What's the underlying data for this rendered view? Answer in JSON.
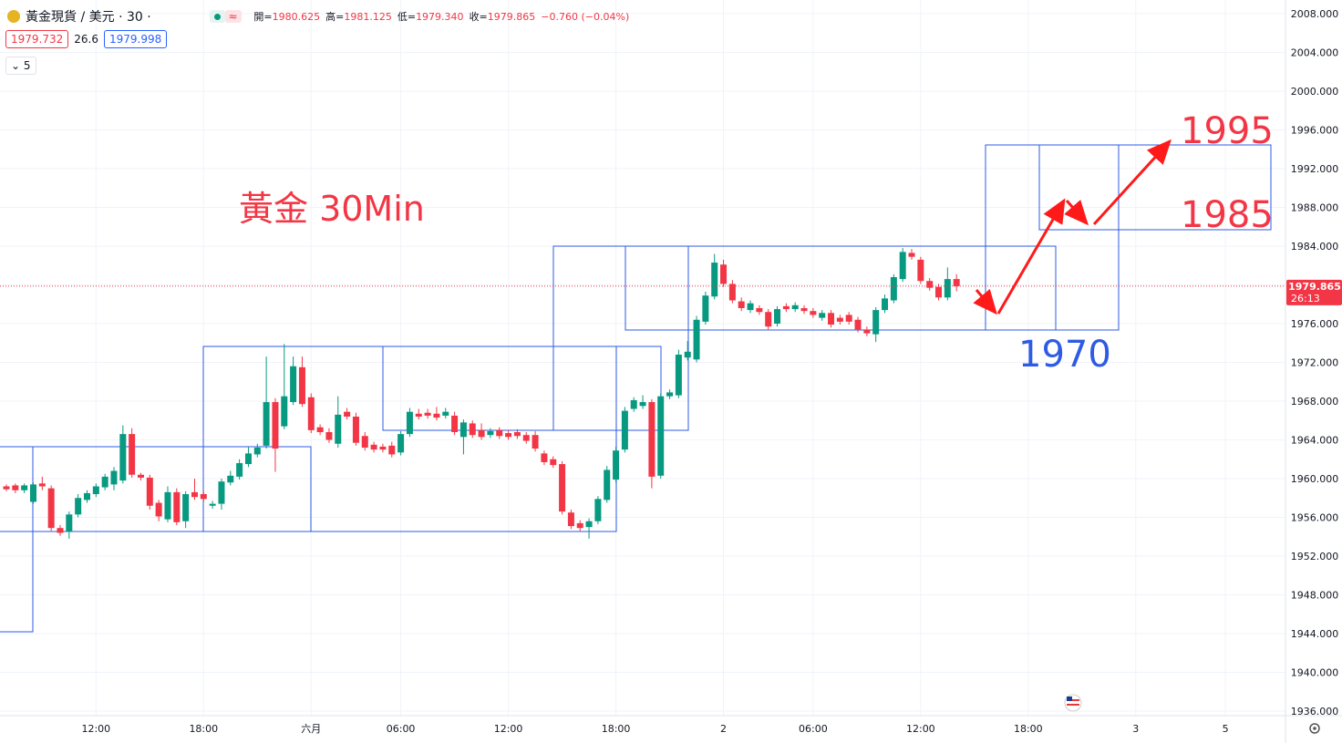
{
  "header": {
    "symbol": "黃金現貨 / 美元 · 30 ·",
    "ohlc": [
      {
        "label": "開=",
        "value": "1980.625"
      },
      {
        "label": "高=",
        "value": "1981.125"
      },
      {
        "label": "低=",
        "value": "1979.340"
      },
      {
        "label": "收=",
        "value": "1979.865"
      }
    ],
    "change": "−0.760 (−0.04%)",
    "bid": "1979.732",
    "spread": "26.6",
    "ask": "1979.998",
    "indicator_count": "5"
  },
  "chart_data": {
    "type": "candlestick",
    "up_color": "#089981",
    "down_color": "#f23645",
    "grid": true,
    "xlim": [
      -0.712,
      142.7
    ],
    "xticks": [
      {
        "value": 10,
        "label": "12:00"
      },
      {
        "value": 22,
        "label": "18:00"
      },
      {
        "value": 34,
        "label": "六月"
      },
      {
        "value": 44,
        "label": "06:00"
      },
      {
        "value": 56,
        "label": "12:00"
      },
      {
        "value": 68,
        "label": "18:00"
      },
      {
        "value": 80,
        "label": "2"
      },
      {
        "value": 90,
        "label": "06:00"
      },
      {
        "value": 102,
        "label": "12:00"
      },
      {
        "value": 114,
        "label": "18:00"
      },
      {
        "value": 126,
        "label": "3"
      },
      {
        "value": 136,
        "label": "5"
      }
    ],
    "ylim": [
      1935.53,
      2009.41
    ],
    "yticks": [
      {
        "value": 2008,
        "label": "2008.000"
      },
      {
        "value": 2004,
        "label": "2004.000"
      },
      {
        "value": 2000,
        "label": "2000.000"
      },
      {
        "value": 1996,
        "label": "1996.000"
      },
      {
        "value": 1992,
        "label": "1992.000"
      },
      {
        "value": 1988,
        "label": "1988.000"
      },
      {
        "value": 1984,
        "label": "1984.000"
      },
      {
        "value": 1980,
        "label": "1980.000"
      },
      {
        "value": 1976,
        "label": "1976.000"
      },
      {
        "value": 1972,
        "label": "1972.000"
      },
      {
        "value": 1968,
        "label": "1968.000"
      },
      {
        "value": 1964,
        "label": "1964.000"
      },
      {
        "value": 1960,
        "label": "1960.000"
      },
      {
        "value": 1956,
        "label": "1956.000"
      },
      {
        "value": 1952,
        "label": "1952.000"
      },
      {
        "value": 1948,
        "label": "1948.000"
      },
      {
        "value": 1944,
        "label": "1944.000"
      },
      {
        "value": 1940,
        "label": "1940.000"
      },
      {
        "value": 1936,
        "label": "1936.000"
      }
    ],
    "open": [
      1959.2,
      1959.3,
      1958.8,
      1957.6,
      1959.5,
      1959.0,
      1954.9,
      1954.5,
      1956.3,
      1957.8,
      1958.4,
      1959.1,
      1959.4,
      1959.8,
      1964.6,
      1960.4,
      1960.1,
      1957.5,
      1955.8,
      1958.6,
      1955.6,
      1958.6,
      1958.4,
      1957.2,
      1957.4,
      1959.6,
      1960.2,
      1961.5,
      1962.5,
      1963.4,
      1967.9,
      1965.4,
      1967.9,
      1971.5,
      1968.4,
      1965.3,
      1964.8,
      1963.6,
      1966.9,
      1966.4,
      1964.4,
      1963.5,
      1963.3,
      1963.4,
      1962.7,
      1964.6,
      1966.7,
      1966.8,
      1966.7,
      1966.5,
      1966.5,
      1964.3,
      1965.7,
      1965.0,
      1964.5,
      1965.0,
      1964.7,
      1964.8,
      1964.5,
      1964.5,
      1962.6,
      1962.0,
      1961.5,
      1956.5,
      1955.4,
      1955.0,
      1955.6,
      1957.8,
      1959.9,
      1963.0,
      1967.2,
      1967.5,
      1967.9,
      1960.3,
      1968.5,
      1968.6,
      1972.5,
      1972.3,
      1976.2,
      1978.8,
      1982.1,
      1980.1,
      1978.3,
      1977.4,
      1977.6,
      1977.2,
      1976.0,
      1977.8,
      1977.5,
      1977.6,
      1977.3,
      1976.6,
      1977.1,
      1976.6,
      1976.9,
      1976.4,
      1975.4,
      1974.9,
      1977.4,
      1978.4,
      1980.6,
      1983.3,
      1982.6,
      1980.4,
      1979.8,
      1978.7,
      1980.6
    ],
    "high": [
      1959.4,
      1959.5,
      1959.5,
      1959.6,
      1960.2,
      1959.3,
      1955.2,
      1956.6,
      1958.4,
      1958.8,
      1959.5,
      1960.5,
      1961.2,
      1965.5,
      1965.2,
      1960.6,
      1960.4,
      1957.8,
      1959.2,
      1959.0,
      1958.7,
      1960.0,
      1958.7,
      1957.7,
      1960.0,
      1960.8,
      1962.0,
      1963.3,
      1963.6,
      1972.6,
      1968.3,
      1973.9,
      1972.6,
      1972.6,
      1968.8,
      1965.6,
      1965.2,
      1968.5,
      1967.3,
      1966.8,
      1964.8,
      1963.8,
      1963.6,
      1963.8,
      1964.9,
      1967.3,
      1967.2,
      1967.2,
      1967.4,
      1967.3,
      1966.9,
      1966.1,
      1966.0,
      1965.7,
      1965.2,
      1965.3,
      1965.0,
      1965.1,
      1964.8,
      1964.9,
      1962.9,
      1962.3,
      1961.8,
      1956.8,
      1955.7,
      1955.9,
      1958.2,
      1961.3,
      1963.3,
      1967.4,
      1968.4,
      1968.6,
      1968.2,
      1968.8,
      1969.2,
      1973.3,
      1974.2,
      1976.8,
      1979.3,
      1983.2,
      1982.6,
      1980.5,
      1978.7,
      1978.4,
      1977.9,
      1977.5,
      1977.8,
      1978.1,
      1978.2,
      1977.9,
      1977.6,
      1977.4,
      1977.4,
      1976.9,
      1977.2,
      1976.7,
      1975.7,
      1977.7,
      1979.0,
      1981.1,
      1983.8,
      1983.7,
      1982.9,
      1980.7,
      1980.1,
      1981.8,
      1981.1
    ],
    "low": [
      1958.7,
      1958.5,
      1958.5,
      1957.4,
      1958.8,
      1954.6,
      1954.1,
      1953.8,
      1956.0,
      1957.5,
      1958.1,
      1958.8,
      1958.8,
      1959.5,
      1960.1,
      1959.8,
      1956.8,
      1955.6,
      1955.5,
      1955.2,
      1954.9,
      1957.8,
      1957.6,
      1956.9,
      1956.8,
      1959.3,
      1959.9,
      1961.2,
      1962.2,
      1963.1,
      1960.7,
      1965.1,
      1967.6,
      1967.4,
      1964.7,
      1964.5,
      1963.7,
      1963.2,
      1966.1,
      1963.4,
      1962.9,
      1962.7,
      1962.7,
      1962.2,
      1962.4,
      1964.3,
      1966.1,
      1966.2,
      1966.0,
      1966.2,
      1964.5,
      1962.5,
      1964.2,
      1964.0,
      1964.2,
      1964.1,
      1964.0,
      1964.1,
      1963.6,
      1962.8,
      1961.4,
      1961.1,
      1956.3,
      1954.8,
      1954.6,
      1953.8,
      1955.3,
      1957.5,
      1959.6,
      1962.7,
      1966.9,
      1967.2,
      1959.0,
      1960.0,
      1968.2,
      1968.3,
      1972.2,
      1972.0,
      1975.9,
      1978.5,
      1979.8,
      1978.1,
      1977.3,
      1977.1,
      1976.9,
      1975.4,
      1975.7,
      1977.2,
      1977.2,
      1977.0,
      1976.6,
      1976.3,
      1975.6,
      1975.9,
      1975.9,
      1975.1,
      1974.7,
      1974.1,
      1977.1,
      1978.1,
      1980.3,
      1982.6,
      1980.1,
      1979.4,
      1978.4,
      1978.4,
      1979.34
    ],
    "close": [
      1958.9,
      1958.8,
      1959.3,
      1959.4,
      1959.2,
      1954.9,
      1954.4,
      1956.3,
      1958.0,
      1958.5,
      1959.2,
      1960.2,
      1960.8,
      1964.6,
      1960.4,
      1960.1,
      1957.2,
      1956.1,
      1958.6,
      1955.5,
      1958.4,
      1958.1,
      1957.9,
      1957.4,
      1959.7,
      1960.3,
      1961.6,
      1962.6,
      1963.2,
      1967.9,
      1963.1,
      1968.5,
      1971.6,
      1967.7,
      1965.0,
      1964.8,
      1964.0,
      1966.6,
      1966.4,
      1963.7,
      1963.2,
      1963.0,
      1963.0,
      1962.5,
      1964.6,
      1966.9,
      1966.4,
      1966.5,
      1966.3,
      1966.9,
      1964.8,
      1965.8,
      1964.5,
      1964.3,
      1964.9,
      1964.4,
      1964.3,
      1964.4,
      1963.9,
      1963.1,
      1961.7,
      1961.4,
      1956.6,
      1955.1,
      1954.9,
      1955.6,
      1957.9,
      1960.9,
      1962.9,
      1967.0,
      1968.1,
      1967.9,
      1960.2,
      1968.5,
      1968.9,
      1972.8,
      1973.1,
      1976.4,
      1978.9,
      1982.3,
      1980.1,
      1978.4,
      1977.6,
      1978.1,
      1977.2,
      1975.7,
      1977.5,
      1977.5,
      1977.9,
      1977.3,
      1976.9,
      1977.1,
      1975.9,
      1976.2,
      1976.2,
      1975.4,
      1975.0,
      1977.4,
      1978.6,
      1980.8,
      1983.4,
      1982.9,
      1980.4,
      1979.7,
      1978.7,
      1980.6,
      1979.865
    ],
    "price_tag": {
      "value": 1979.865,
      "timer": "26:13"
    },
    "annotations": {
      "title": "黃金 30Min",
      "target_high": "1995",
      "target_mid": "1985",
      "target_low": "1970"
    }
  }
}
